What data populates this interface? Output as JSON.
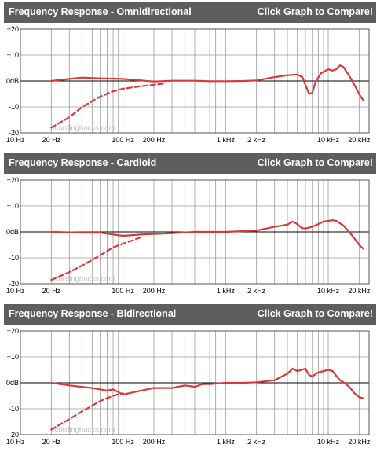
{
  "header": {
    "compare_label": "Click Graph to Compare!"
  },
  "colors": {
    "header_bg": "#5e5e5e",
    "curve": "#d83a3a",
    "grid": "#9a9a9a",
    "watermark": "#bfbfbf"
  },
  "watermark": "recordinghacks.com",
  "chart_data": [
    {
      "type": "line",
      "title": "Frequency Response - Omnidirectional",
      "x_scale": "log",
      "xlim": [
        10,
        25000
      ],
      "ylim": [
        -20,
        20
      ],
      "x_tick_labels": [
        {
          "value": 10,
          "label": "10 Hz"
        },
        {
          "value": 20,
          "label": "20 Hz"
        },
        {
          "value": 100,
          "label": "100 Hz"
        },
        {
          "value": 200,
          "label": "200 Hz"
        },
        {
          "value": 1000,
          "label": "1 kHz"
        },
        {
          "value": 2000,
          "label": "2 kHz"
        },
        {
          "value": 10000,
          "label": "10 kHz"
        },
        {
          "value": 20000,
          "label": "20 kHz"
        }
      ],
      "y_tick_labels": [
        {
          "value": 20,
          "label": "+20"
        },
        {
          "value": 10,
          "label": "+10"
        },
        {
          "value": 0,
          "label": "0dB"
        },
        {
          "value": -10,
          "label": "-10"
        },
        {
          "value": -20,
          "label": "-20"
        }
      ],
      "series": [
        {
          "style": "solid",
          "points": [
            [
              20,
              0
            ],
            [
              30,
              0.8
            ],
            [
              40,
              1.3
            ],
            [
              60,
              1
            ],
            [
              100,
              0.8
            ],
            [
              150,
              0.2
            ],
            [
              200,
              -0.2
            ],
            [
              300,
              0.1
            ],
            [
              500,
              0.1
            ],
            [
              700,
              -0.1
            ],
            [
              1000,
              -0.1
            ],
            [
              1500,
              0
            ],
            [
              2000,
              0.2
            ],
            [
              3000,
              1.5
            ],
            [
              4000,
              2.2
            ],
            [
              5000,
              2.5
            ],
            [
              5600,
              1.5
            ],
            [
              6000,
              -1.5
            ],
            [
              6500,
              -5
            ],
            [
              7000,
              -4.5
            ],
            [
              7500,
              -0.5
            ],
            [
              8500,
              3
            ],
            [
              10000,
              4.5
            ],
            [
              11000,
              4
            ],
            [
              12000,
              4.5
            ],
            [
              13000,
              6
            ],
            [
              14000,
              5.5
            ],
            [
              16000,
              2
            ],
            [
              18000,
              -1.5
            ],
            [
              20000,
              -5
            ],
            [
              22000,
              -7.5
            ]
          ]
        },
        {
          "style": "dashed",
          "points": [
            [
              20,
              -18
            ],
            [
              30,
              -14
            ],
            [
              40,
              -10
            ],
            [
              60,
              -6
            ],
            [
              80,
              -4
            ],
            [
              100,
              -3
            ],
            [
              150,
              -2
            ],
            [
              200,
              -1.5
            ],
            [
              250,
              -1
            ]
          ]
        }
      ]
    },
    {
      "type": "line",
      "title": "Frequency Response - Cardioid",
      "x_scale": "log",
      "xlim": [
        10,
        25000
      ],
      "ylim": [
        -20,
        20
      ],
      "x_tick_labels": [
        {
          "value": 10,
          "label": "10 Hz"
        },
        {
          "value": 20,
          "label": "20 Hz"
        },
        {
          "value": 100,
          "label": "100 Hz"
        },
        {
          "value": 200,
          "label": "200 Hz"
        },
        {
          "value": 1000,
          "label": "1 kHz"
        },
        {
          "value": 2000,
          "label": "2 kHz"
        },
        {
          "value": 10000,
          "label": "10 kHz"
        },
        {
          "value": 20000,
          "label": "20 kHz"
        }
      ],
      "y_tick_labels": [
        {
          "value": 20,
          "label": "+20"
        },
        {
          "value": 10,
          "label": "+10"
        },
        {
          "value": 0,
          "label": "0dB"
        },
        {
          "value": -10,
          "label": "-10"
        },
        {
          "value": -20,
          "label": "-20"
        }
      ],
      "series": [
        {
          "style": "solid",
          "points": [
            [
              20,
              0
            ],
            [
              40,
              -0.3
            ],
            [
              60,
              -0.3
            ],
            [
              80,
              -1
            ],
            [
              100,
              -1.5
            ],
            [
              150,
              -1
            ],
            [
              200,
              -0.8
            ],
            [
              300,
              -0.5
            ],
            [
              500,
              0
            ],
            [
              700,
              0
            ],
            [
              1000,
              0
            ],
            [
              1500,
              0.3
            ],
            [
              2000,
              0.5
            ],
            [
              3000,
              2
            ],
            [
              4000,
              2.8
            ],
            [
              4500,
              4
            ],
            [
              5000,
              3
            ],
            [
              5500,
              1.5
            ],
            [
              6000,
              1.3
            ],
            [
              7000,
              2
            ],
            [
              8000,
              3
            ],
            [
              9000,
              4
            ],
            [
              10000,
              4.2
            ],
            [
              11000,
              4.5
            ],
            [
              12000,
              4.2
            ],
            [
              14000,
              2.5
            ],
            [
              16000,
              0
            ],
            [
              18000,
              -2.5
            ],
            [
              20000,
              -5
            ],
            [
              22000,
              -6.5
            ]
          ]
        },
        {
          "style": "dashed",
          "points": [
            [
              20,
              -18.5
            ],
            [
              30,
              -15.5
            ],
            [
              40,
              -13
            ],
            [
              60,
              -9
            ],
            [
              80,
              -6
            ],
            [
              100,
              -4.5
            ],
            [
              130,
              -3
            ],
            [
              150,
              -2
            ]
          ]
        }
      ]
    },
    {
      "type": "line",
      "title": "Frequency Response - Bidirectional",
      "x_scale": "log",
      "xlim": [
        10,
        25000
      ],
      "ylim": [
        -20,
        20
      ],
      "x_tick_labels": [
        {
          "value": 10,
          "label": "10 Hz"
        },
        {
          "value": 20,
          "label": "20 Hz"
        },
        {
          "value": 100,
          "label": "100 Hz"
        },
        {
          "value": 200,
          "label": "200 Hz"
        },
        {
          "value": 1000,
          "label": "1 kHz"
        },
        {
          "value": 2000,
          "label": "2 kHz"
        },
        {
          "value": 10000,
          "label": "10 kHz"
        },
        {
          "value": 20000,
          "label": "20 kHz"
        }
      ],
      "y_tick_labels": [
        {
          "value": 20,
          "label": "+20"
        },
        {
          "value": 10,
          "label": "+10"
        },
        {
          "value": 0,
          "label": "0dB"
        },
        {
          "value": -10,
          "label": "-10"
        },
        {
          "value": -20,
          "label": "-20"
        }
      ],
      "series": [
        {
          "style": "solid",
          "points": [
            [
              20,
              0
            ],
            [
              30,
              -1
            ],
            [
              50,
              -2
            ],
            [
              70,
              -3
            ],
            [
              80,
              -2.5
            ],
            [
              100,
              -4.5
            ],
            [
              150,
              -3
            ],
            [
              200,
              -2
            ],
            [
              300,
              -2
            ],
            [
              400,
              -1
            ],
            [
              500,
              -1.5
            ],
            [
              600,
              -0.5
            ],
            [
              700,
              -0.5
            ],
            [
              1000,
              0
            ],
            [
              1500,
              0
            ],
            [
              2000,
              0.2
            ],
            [
              3000,
              1
            ],
            [
              4000,
              3.5
            ],
            [
              4500,
              5.5
            ],
            [
              5000,
              4.5
            ],
            [
              6000,
              5.5
            ],
            [
              6500,
              3
            ],
            [
              7000,
              2.5
            ],
            [
              8000,
              4
            ],
            [
              10000,
              5
            ],
            [
              11000,
              4.5
            ],
            [
              13000,
              1
            ],
            [
              14000,
              0.3
            ],
            [
              16000,
              -1.5
            ],
            [
              18000,
              -4
            ],
            [
              20000,
              -5.5
            ],
            [
              22000,
              -6
            ]
          ]
        },
        {
          "style": "dashed",
          "points": [
            [
              20,
              -18
            ],
            [
              30,
              -14
            ],
            [
              40,
              -11
            ],
            [
              60,
              -7
            ],
            [
              80,
              -5
            ],
            [
              100,
              -4
            ]
          ]
        }
      ]
    }
  ]
}
